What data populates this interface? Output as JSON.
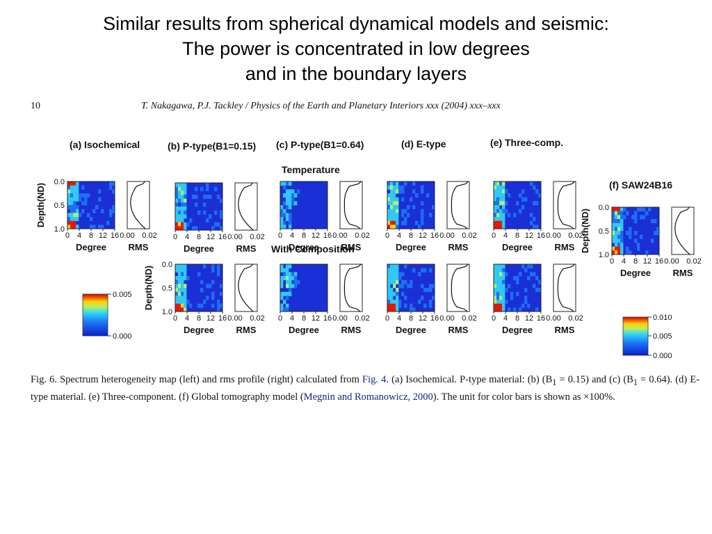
{
  "slide": {
    "title_lines": [
      "Similar results from spherical dynamical models and seismic:",
      "The power is concentrated in low degrees",
      "and in the boundary layers"
    ]
  },
  "paper_header": {
    "page_number": "10",
    "journal_line": "T. Nakagawa, P.J. Tackley / Physics of the Earth and Planetary Interiors xxx (2004) xxx–xxx"
  },
  "figure": {
    "panel_labels": {
      "a": "(a) Isochemical",
      "b": "(b) P-type(B1=0.15)",
      "c": "(c) P-type(B1=0.64)",
      "d": "(d) E-type",
      "e": "(e) Three-comp.",
      "f": "(f) SAW24B16"
    },
    "row_labels": {
      "temperature": "Temperature",
      "composition": "With Composition"
    },
    "axis": {
      "depth_label": "Depth(ND)",
      "degree_label": "Degree",
      "rms_label": "RMS",
      "depth_ticks": [
        "0.0",
        "0.5",
        "1.0"
      ],
      "degree_ticks": [
        "0",
        "4",
        "8",
        "12",
        "16"
      ],
      "rms_ticks": [
        "0.00",
        "0.02"
      ]
    },
    "colorbars": {
      "left": {
        "max": "0.005",
        "min": "0.000"
      },
      "right": {
        "max": "0.010",
        "mid": "0.005",
        "min": "0.000"
      }
    }
  },
  "caption": {
    "fig_label": "Fig. 6.",
    "part1": " Spectrum heterogeneity map (left) and rms profile (right) calculated from ",
    "ref_fig": "Fig. 4",
    "part2": ". (a) Isochemical. P-type material: (b) (B",
    "sub1": "1",
    "part3": " = 0.15) and (c) (B",
    "sub2": "1",
    "part4": " = 0.64). (d) E-type material. (e) Three-component. (f) Global tomography model (",
    "ref_paper": "Megnin and Romanowicz, 2000",
    "part5": "). The unit for color bars is shown as ×100%."
  },
  "colors": {
    "map_low": "#1a2fd6",
    "map_mid": "#29b6f6",
    "map_high": "#ff3300"
  }
}
